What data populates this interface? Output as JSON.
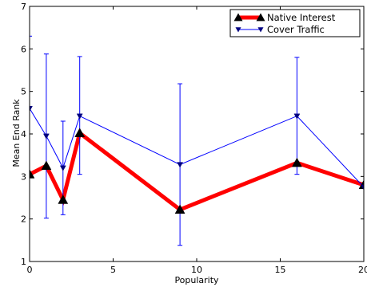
{
  "chart_data": {
    "type": "line",
    "title": "",
    "xlabel": "Popularity",
    "ylabel": "Mean End Rank",
    "xlim": [
      0,
      20
    ],
    "ylim": [
      1,
      7
    ],
    "xticks": [
      0,
      5,
      10,
      15,
      20
    ],
    "yticks": [
      1,
      2,
      3,
      4,
      5,
      6,
      7
    ],
    "grid": false,
    "legend_position": "top-right",
    "series": [
      {
        "name": "Native Interest",
        "color": "#ff0000",
        "marker": "triangle-up",
        "marker_color": "#000000",
        "x": [
          0,
          1,
          2,
          3,
          9,
          16,
          20
        ],
        "y": [
          3.05,
          3.25,
          2.45,
          4.02,
          2.22,
          3.32,
          2.8
        ]
      },
      {
        "name": "Cover Traffic",
        "color": "#0000ff",
        "marker": "triangle-down",
        "marker_color": "#000080",
        "x": [
          0,
          1,
          2,
          3,
          9,
          16,
          20
        ],
        "y": [
          4.6,
          3.95,
          3.2,
          4.42,
          3.28,
          4.42,
          2.75
        ],
        "error_low": [
          null,
          2.02,
          2.1,
          3.05,
          1.38,
          3.05,
          null
        ],
        "error_high": [
          6.3,
          5.88,
          4.3,
          5.82,
          5.18,
          5.8,
          null
        ]
      }
    ]
  }
}
